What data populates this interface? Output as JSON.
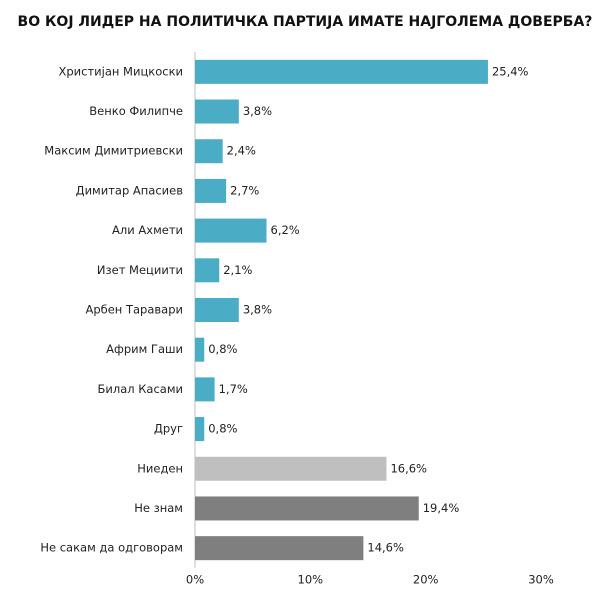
{
  "chart_data": {
    "type": "bar",
    "orientation": "horizontal",
    "title": "ВО КОЈ ЛИДЕР НА ПОЛИТИЧКА ПАРТИЈА ИМАТЕ НАЈГОЛЕМА ДОВЕРБА?",
    "categories": [
      "Христијан Мицкоски",
      "Венко Филипче",
      "Максим Димитриевски",
      "Димитар Апасиев",
      "Али Ахмети",
      "Изет Мециити",
      "Арбен Таравари",
      "Африм Гаши",
      "Билал Касами",
      "Друг",
      "Ниеден",
      "Не знам",
      "Не сакам да одговорам"
    ],
    "values": [
      25.4,
      3.8,
      2.4,
      2.7,
      6.2,
      2.1,
      3.8,
      0.8,
      1.7,
      0.8,
      16.6,
      19.4,
      14.6
    ],
    "value_labels": [
      "25,4%",
      "3,8%",
      "2,4%",
      "2,7%",
      "6,2%",
      "2,1%",
      "3,8%",
      "0,8%",
      "1,7%",
      "0,8%",
      "16,6%",
      "19,4%",
      "14,6%"
    ],
    "colors": [
      "#4bacc6",
      "#4bacc6",
      "#4bacc6",
      "#4bacc6",
      "#4bacc6",
      "#4bacc6",
      "#4bacc6",
      "#4bacc6",
      "#4bacc6",
      "#4bacc6",
      "#bfbfbf",
      "#7f7f7f",
      "#7f7f7f"
    ],
    "xlim": [
      0,
      30
    ],
    "xticks": [
      {
        "value": 0,
        "label": "0%"
      },
      {
        "value": 10,
        "label": "10%"
      },
      {
        "value": 20,
        "label": "20%"
      },
      {
        "value": 30,
        "label": "30%"
      }
    ],
    "grid": false
  }
}
